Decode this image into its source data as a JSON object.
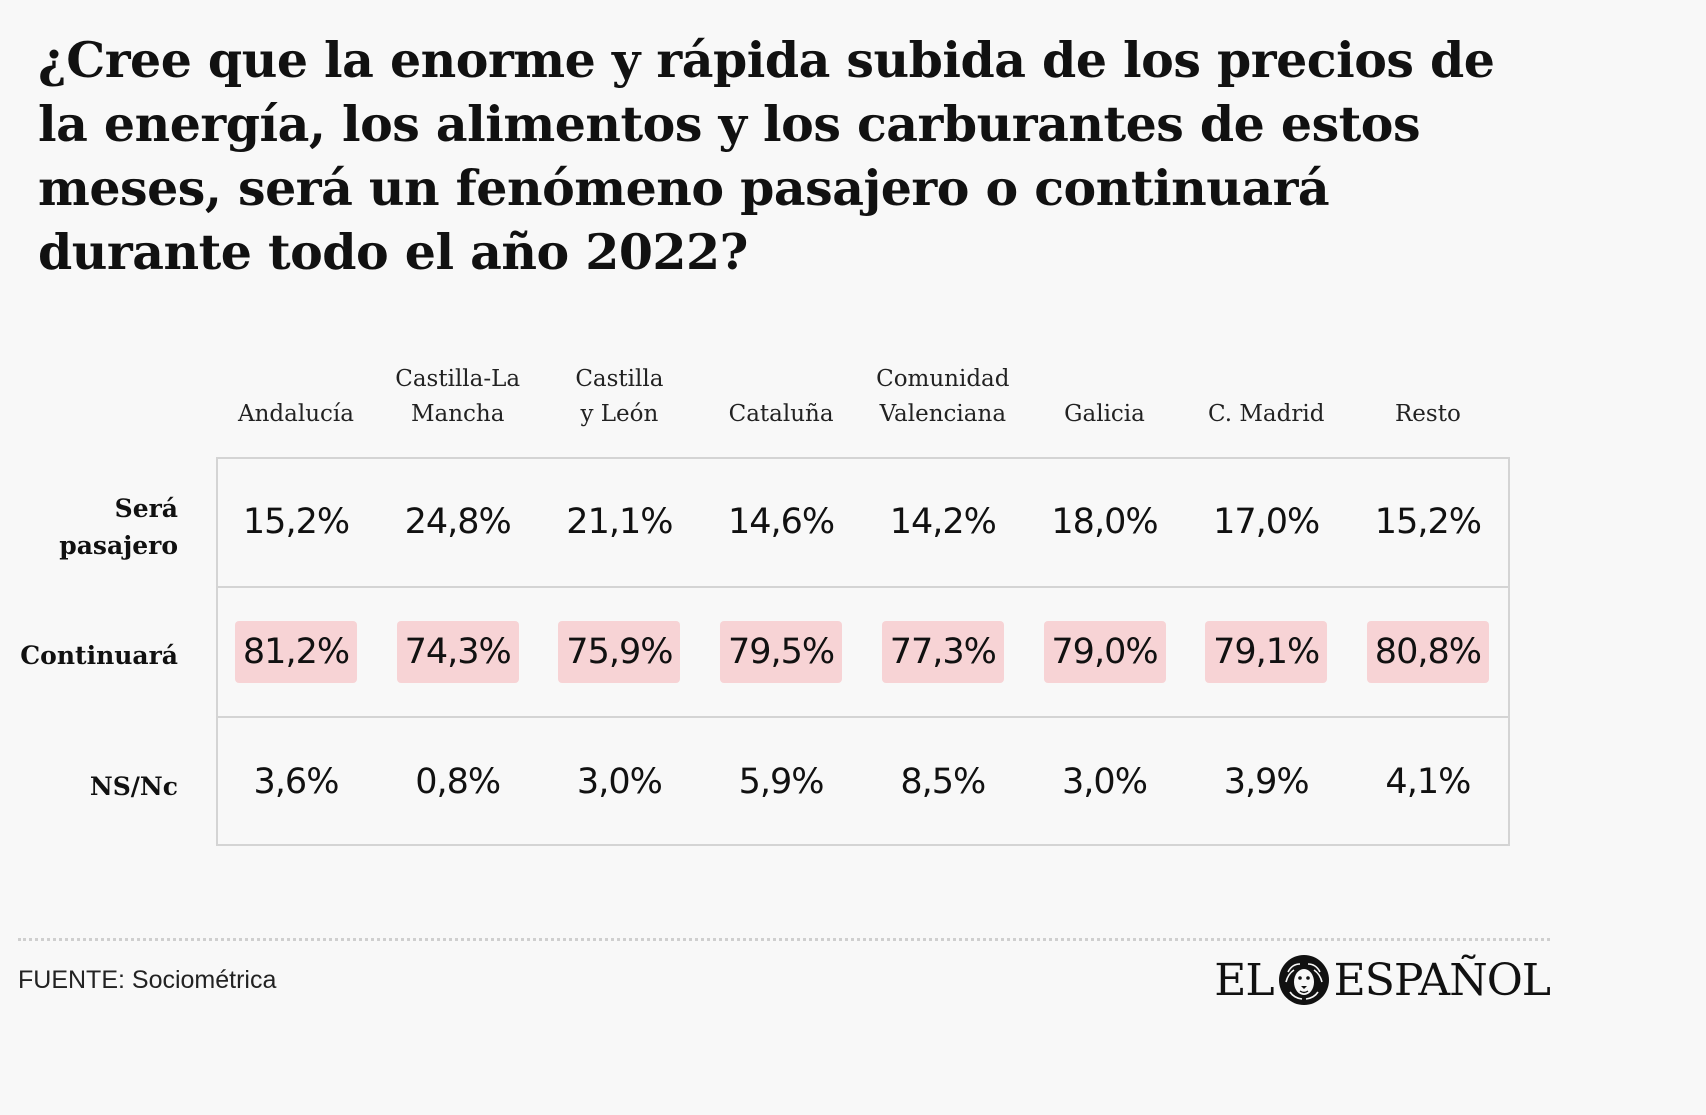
{
  "title": "¿Cree que la enorme y rápida subida de los  precios de la energía, los alimentos y los  carburantes de estos meses, será un fenómeno  pasajero o continuará durante todo el año 2022?",
  "source": "FUENTE: Sociométrica",
  "logo": {
    "left": "EL",
    "right": "ESPAÑOL",
    "icon": "lion-head-icon"
  },
  "colors": {
    "background": "#f8f8f8",
    "highlight": "#f7d3d5",
    "border": "#d4d4d4",
    "text": "#111111"
  },
  "chart_data": {
    "type": "table",
    "title": "¿Cree que la enorme y rápida subida de los  precios de la energía, los alimentos y los  carburantes de estos meses, será un fenómeno  pasajero o continuará durante todo el año 2022?",
    "columns": [
      "Andalucía",
      "Castilla-La\nMancha",
      "Castilla\ny León",
      "Cataluña",
      "Comunidad\nValenciana",
      "Galicia",
      "C. Madrid",
      "Resto"
    ],
    "rows": [
      {
        "label": "Será\npasajero",
        "values": [
          "15,2%",
          "24,8%",
          "21,1%",
          "14,6%",
          "14,2%",
          "18,0%",
          "17,0%",
          "15,2%"
        ],
        "highlight": false
      },
      {
        "label": "Continuará",
        "values": [
          "81,2%",
          "74,3%",
          "75,9%",
          "79,5%",
          "77,3%",
          "79,0%",
          "79,1%",
          "80,8%"
        ],
        "highlight": true
      },
      {
        "label": "NS/Nc",
        "values": [
          "3,6%",
          "0,8%",
          "3,0%",
          "5,9%",
          "8,5%",
          "3,0%",
          "3,9%",
          "4,1%"
        ],
        "highlight": false
      }
    ],
    "numeric": {
      "Será pasajero": [
        15.2,
        24.8,
        21.1,
        14.6,
        14.2,
        18.0,
        17.0,
        15.2
      ],
      "Continuará": [
        81.2,
        74.3,
        75.9,
        79.5,
        77.3,
        79.0,
        79.1,
        80.8
      ],
      "NS/Nc": [
        3.6,
        0.8,
        3.0,
        5.9,
        8.5,
        3.0,
        3.9,
        4.1
      ]
    }
  }
}
